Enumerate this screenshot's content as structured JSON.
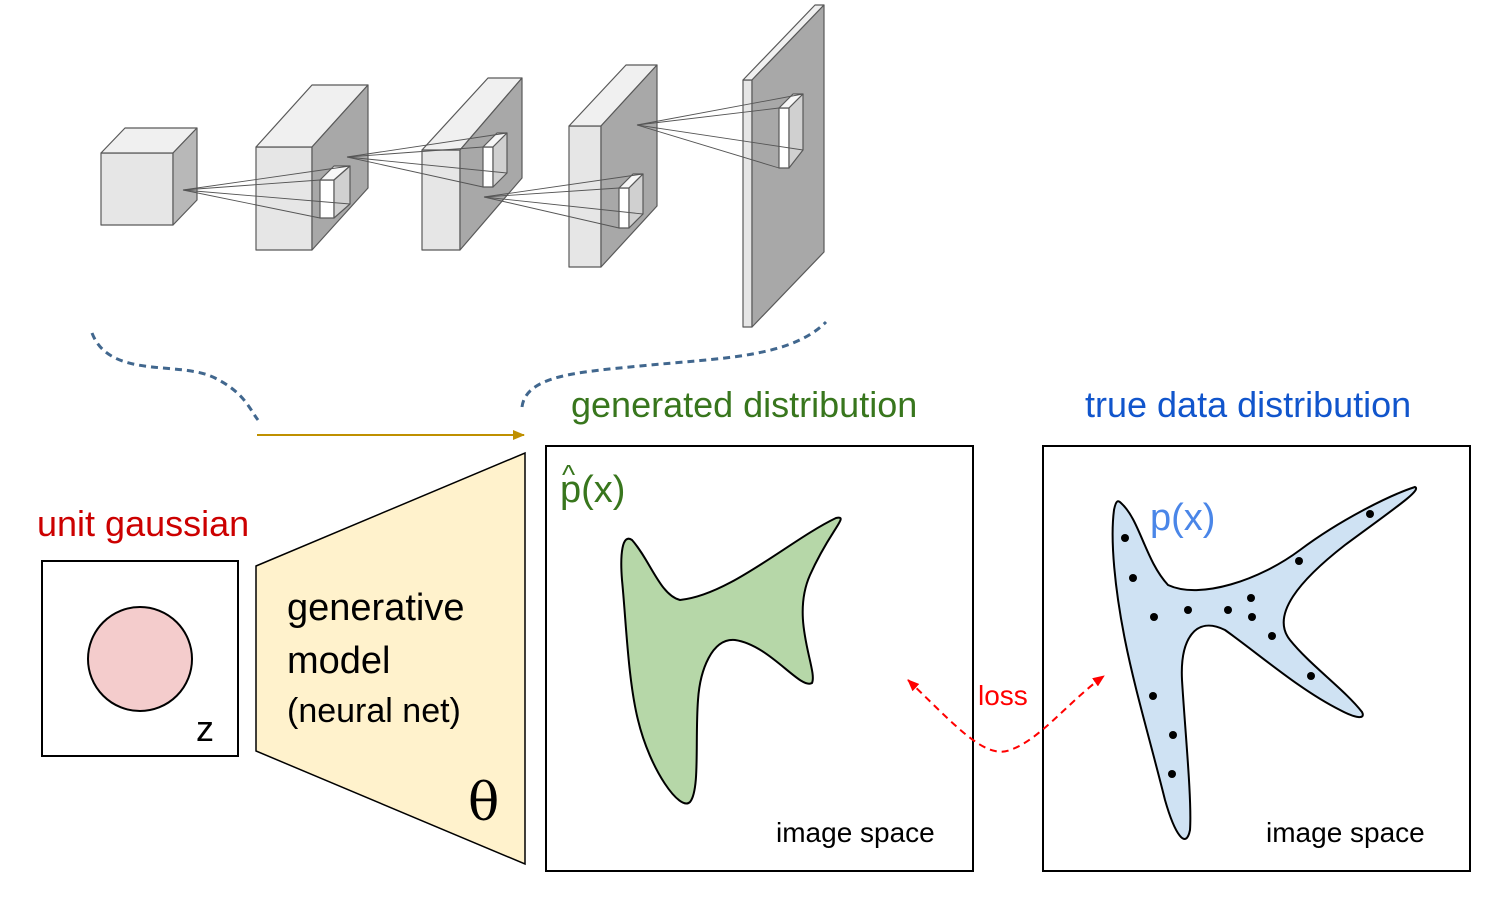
{
  "labels": {
    "generated_title": "generated distribution",
    "true_title": "true data distribution",
    "unit_gaussian": "unit gaussian",
    "z": "z",
    "model_line1": "generative",
    "model_line2": "model",
    "model_line3": "(neural net)",
    "theta": "θ",
    "p_hat_hat": "^",
    "p_hat_body": "p(x)",
    "p_true": "p(x)",
    "image_space_left": "image space",
    "image_space_right": "image space",
    "loss": "loss"
  },
  "colors": {
    "generated_title": "#38761d",
    "true_title": "#1155cc",
    "unit_gaussian": "#cc0000",
    "loss": "#ff0000",
    "p_true": "#4a86e8",
    "gaussian_fill": "#f4cccc",
    "model_fill": "#fff2cc",
    "generated_fill": "#b6d7a8",
    "true_fill": "#cfe2f3",
    "arrow": "#bf9000",
    "dashed_curve": "#41678e",
    "cube_light": "#e6e6e6",
    "cube_dark": "#a8a8a8"
  }
}
